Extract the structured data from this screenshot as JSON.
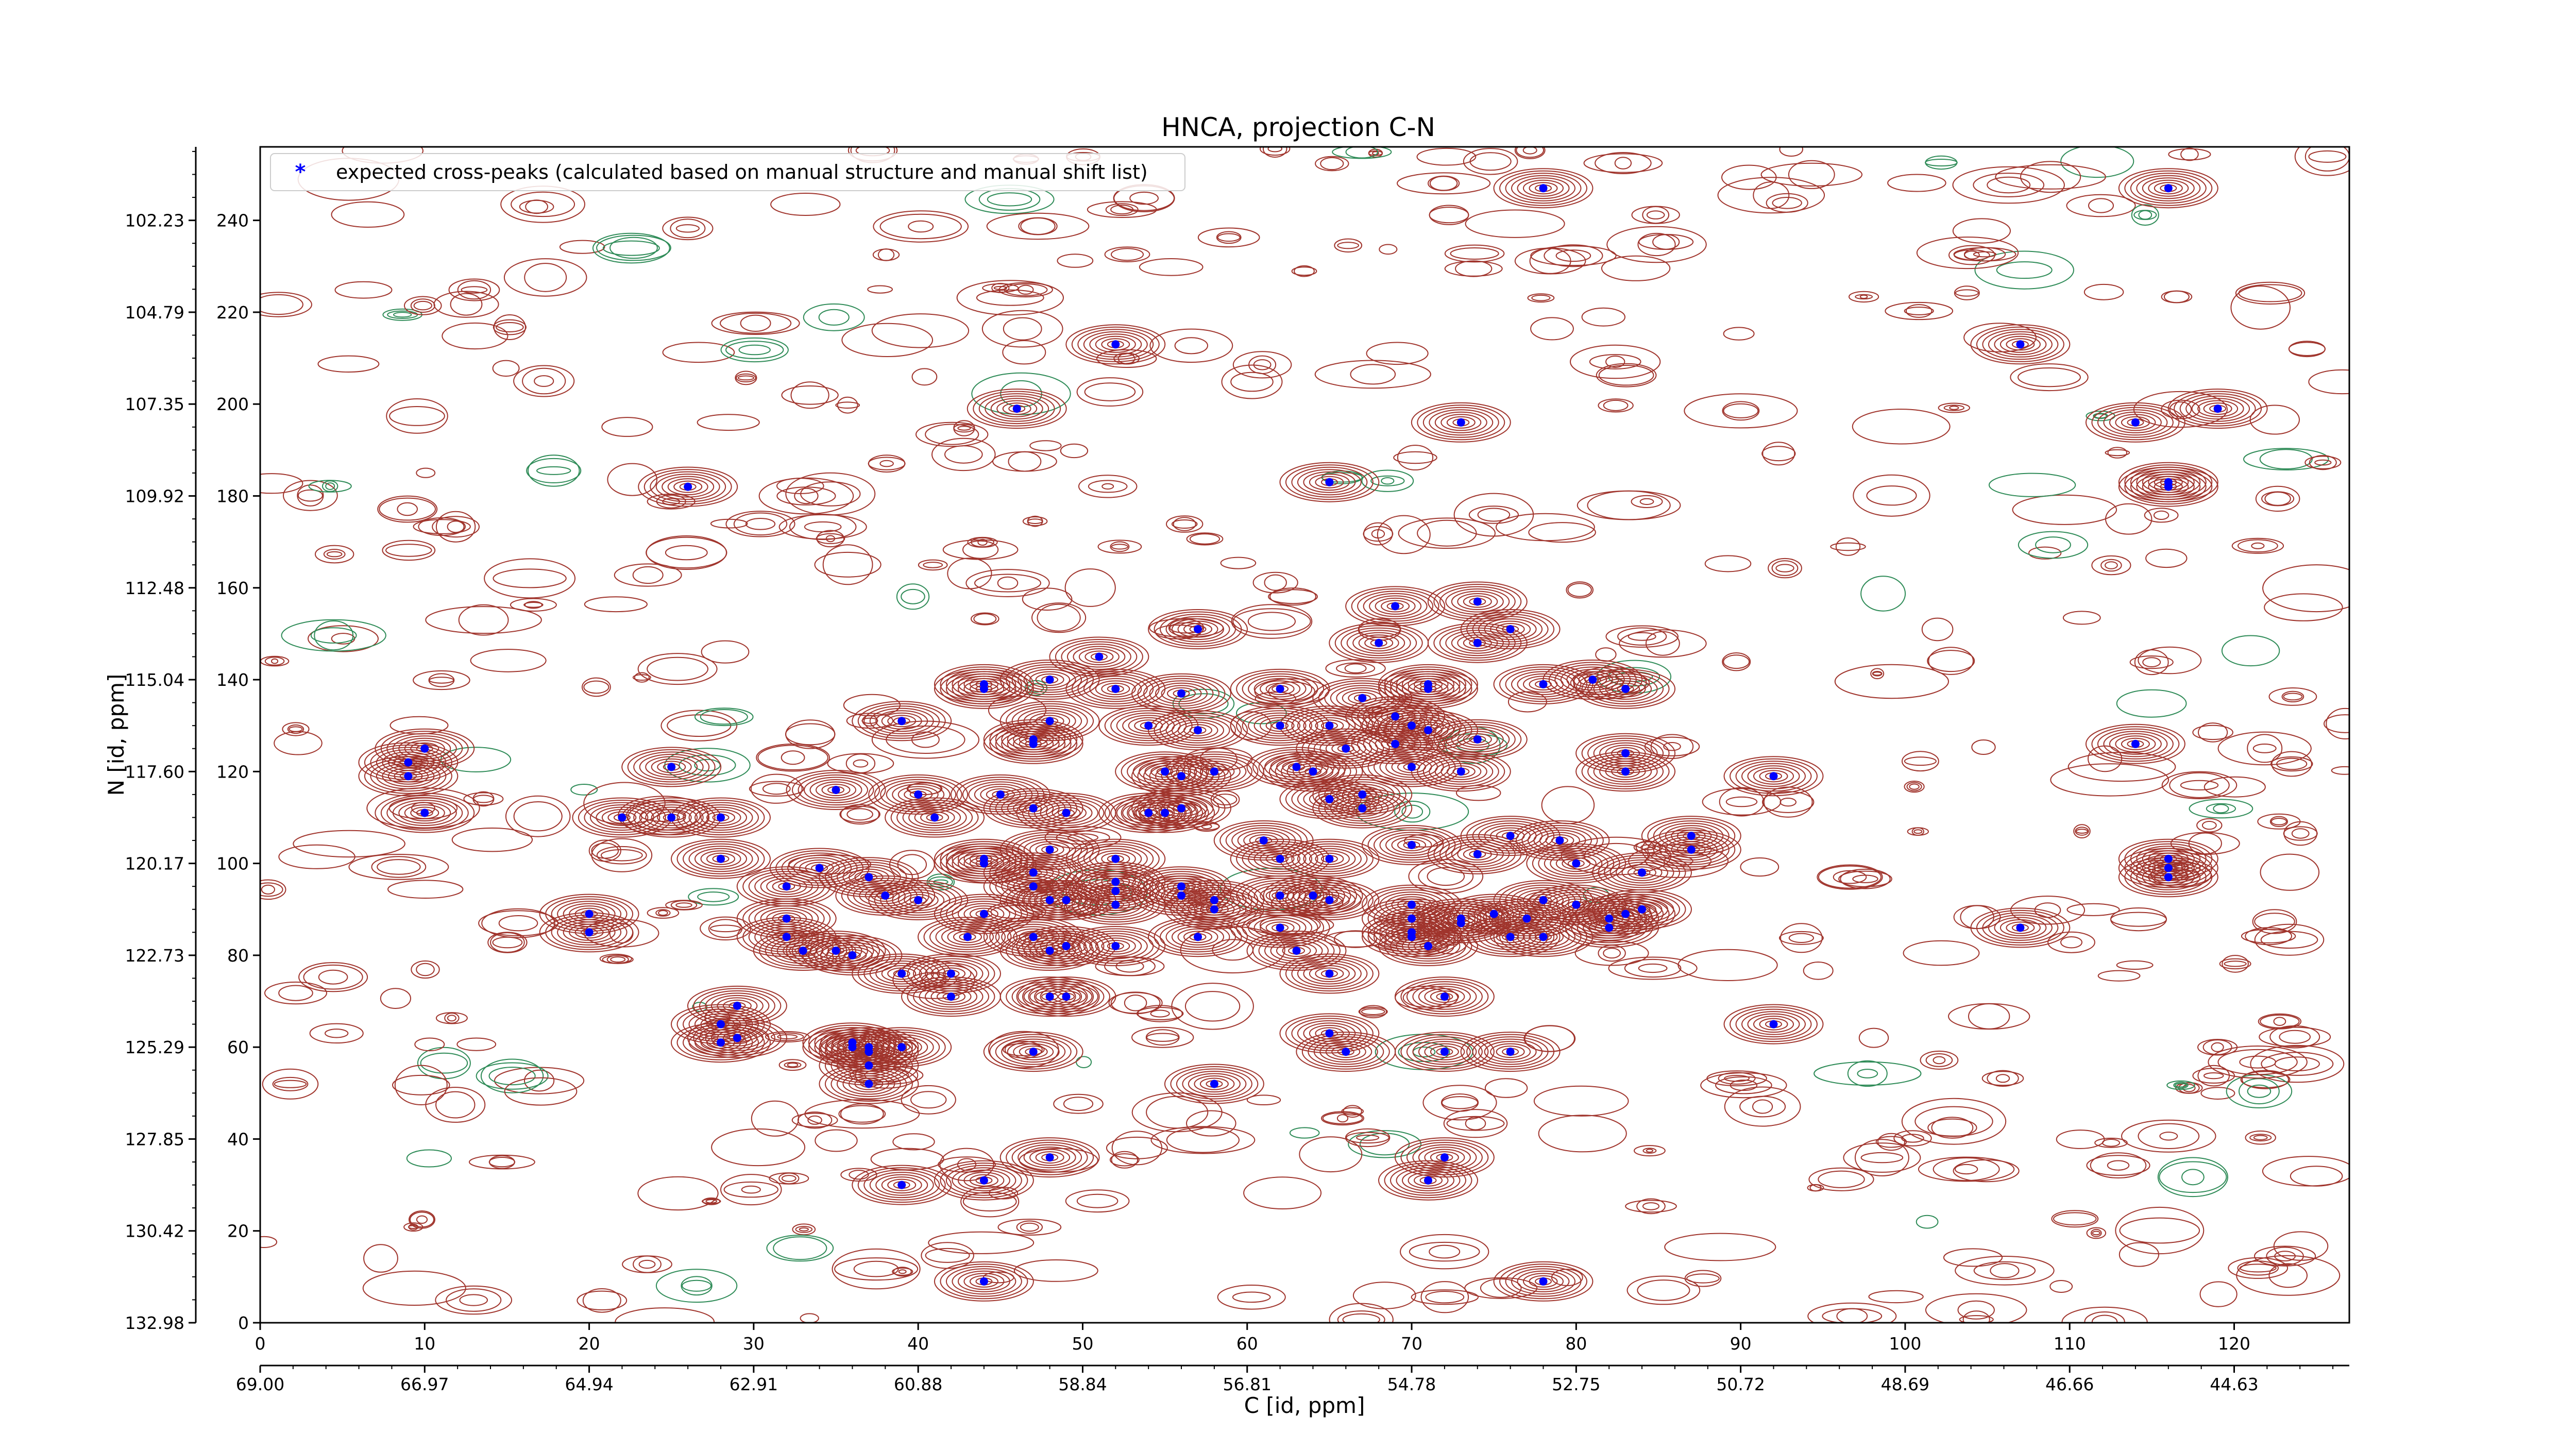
{
  "chart_data": {
    "type": "contour",
    "title": "HNCA, projection C-N",
    "xlabel": "C [id, ppm]",
    "ylabel": "N [id, ppm]",
    "x_index_range": [
      0,
      127
    ],
    "y_index_range": [
      0,
      256
    ],
    "x_index_ticks": [
      0,
      10,
      20,
      30,
      40,
      50,
      60,
      70,
      80,
      90,
      100,
      110,
      120
    ],
    "y_index_ticks": [
      0,
      20,
      40,
      60,
      80,
      100,
      120,
      140,
      160,
      180,
      200,
      220,
      240
    ],
    "x_ppm_ticks": [
      "69.00",
      "66.97",
      "64.94",
      "62.91",
      "60.88",
      "58.84",
      "56.81",
      "54.78",
      "52.75",
      "50.72",
      "48.69",
      "46.66",
      "44.63"
    ],
    "y_ppm_ticks": [
      "132.98",
      "130.42",
      "127.85",
      "125.29",
      "122.73",
      "120.17",
      "117.60",
      "115.04",
      "112.48",
      "109.92",
      "107.35",
      "104.79",
      "102.23"
    ],
    "contour_colors": {
      "positive": "#a0342c",
      "negative": "#2e8b57"
    },
    "marker_color": "#0000ff",
    "legend": {
      "placement": "top-left",
      "entries": [
        "expected cross-peaks (calculated based on manual structure and manual shift list)"
      ]
    },
    "peaks": [
      [
        78,
        247
      ],
      [
        116,
        247
      ],
      [
        52,
        213
      ],
      [
        107,
        213
      ],
      [
        46,
        199
      ],
      [
        73,
        196
      ],
      [
        119,
        199
      ],
      [
        114,
        196
      ],
      [
        26,
        182
      ],
      [
        65,
        183
      ],
      [
        116,
        183
      ],
      [
        116,
        182
      ],
      [
        69,
        156
      ],
      [
        74,
        157
      ],
      [
        57,
        151
      ],
      [
        76,
        151
      ],
      [
        68,
        148
      ],
      [
        74,
        148
      ],
      [
        51,
        145
      ],
      [
        44,
        138
      ],
      [
        44,
        139
      ],
      [
        48,
        140
      ],
      [
        52,
        138
      ],
      [
        56,
        137
      ],
      [
        62,
        138
      ],
      [
        67,
        136
      ],
      [
        71,
        138
      ],
      [
        71,
        139
      ],
      [
        78,
        139
      ],
      [
        81,
        140
      ],
      [
        83,
        138
      ],
      [
        39,
        131
      ],
      [
        48,
        131
      ],
      [
        47,
        127
      ],
      [
        47,
        126
      ],
      [
        54,
        130
      ],
      [
        57,
        129
      ],
      [
        62,
        130
      ],
      [
        65,
        130
      ],
      [
        69,
        132
      ],
      [
        70,
        130
      ],
      [
        71,
        129
      ],
      [
        69,
        126
      ],
      [
        74,
        127
      ],
      [
        10,
        125
      ],
      [
        9,
        122
      ],
      [
        9,
        119
      ],
      [
        25,
        121
      ],
      [
        66,
        125
      ],
      [
        70,
        121
      ],
      [
        64,
        120
      ],
      [
        55,
        120
      ],
      [
        56,
        119
      ],
      [
        58,
        120
      ],
      [
        63,
        121
      ],
      [
        73,
        120
      ],
      [
        83,
        124
      ],
      [
        83,
        120
      ],
      [
        92,
        119
      ],
      [
        114,
        126
      ],
      [
        10,
        111
      ],
      [
        22,
        110
      ],
      [
        25,
        110
      ],
      [
        28,
        110
      ],
      [
        35,
        116
      ],
      [
        40,
        115
      ],
      [
        41,
        110
      ],
      [
        45,
        115
      ],
      [
        47,
        112
      ],
      [
        49,
        111
      ],
      [
        54,
        111
      ],
      [
        55,
        111
      ],
      [
        56,
        112
      ],
      [
        65,
        114
      ],
      [
        67,
        112
      ],
      [
        67,
        115
      ],
      [
        28,
        101
      ],
      [
        34,
        99
      ],
      [
        37,
        97
      ],
      [
        44,
        101
      ],
      [
        44,
        100
      ],
      [
        47,
        98
      ],
      [
        48,
        103
      ],
      [
        52,
        101
      ],
      [
        52,
        96
      ],
      [
        61,
        105
      ],
      [
        62,
        101
      ],
      [
        65,
        101
      ],
      [
        70,
        104
      ],
      [
        74,
        102
      ],
      [
        76,
        106
      ],
      [
        79,
        105
      ],
      [
        80,
        100
      ],
      [
        84,
        98
      ],
      [
        87,
        106
      ],
      [
        87,
        103
      ],
      [
        116,
        101
      ],
      [
        116,
        99
      ],
      [
        116,
        97
      ],
      [
        32,
        95
      ],
      [
        38,
        93
      ],
      [
        40,
        92
      ],
      [
        44,
        89
      ],
      [
        47,
        95
      ],
      [
        48,
        92
      ],
      [
        49,
        92
      ],
      [
        52,
        94
      ],
      [
        52,
        91
      ],
      [
        56,
        95
      ],
      [
        56,
        93
      ],
      [
        58,
        92
      ],
      [
        58,
        90
      ],
      [
        62,
        93
      ],
      [
        64,
        93
      ],
      [
        65,
        92
      ],
      [
        70,
        91
      ],
      [
        70,
        88
      ],
      [
        73,
        88
      ],
      [
        73,
        87
      ],
      [
        75,
        89
      ],
      [
        77,
        88
      ],
      [
        78,
        92
      ],
      [
        80,
        91
      ],
      [
        82,
        88
      ],
      [
        83,
        89
      ],
      [
        84,
        90
      ],
      [
        20,
        89
      ],
      [
        20,
        85
      ],
      [
        32,
        88
      ],
      [
        32,
        84
      ],
      [
        33,
        81
      ],
      [
        35,
        81
      ],
      [
        36,
        80
      ],
      [
        43,
        84
      ],
      [
        47,
        84
      ],
      [
        48,
        81
      ],
      [
        49,
        82
      ],
      [
        52,
        82
      ],
      [
        57,
        84
      ],
      [
        62,
        86
      ],
      [
        63,
        81
      ],
      [
        70,
        85
      ],
      [
        70,
        84
      ],
      [
        71,
        82
      ],
      [
        76,
        84
      ],
      [
        78,
        84
      ],
      [
        82,
        86
      ],
      [
        107,
        86
      ],
      [
        39,
        76
      ],
      [
        42,
        76
      ],
      [
        42,
        71
      ],
      [
        48,
        71
      ],
      [
        49,
        71
      ],
      [
        65,
        76
      ],
      [
        72,
        71
      ],
      [
        65,
        63
      ],
      [
        66,
        59
      ],
      [
        72,
        59
      ],
      [
        76,
        59
      ],
      [
        92,
        65
      ],
      [
        28,
        65
      ],
      [
        28,
        61
      ],
      [
        29,
        62
      ],
      [
        29,
        69
      ],
      [
        36,
        61
      ],
      [
        36,
        60
      ],
      [
        37,
        60
      ],
      [
        37,
        59
      ],
      [
        39,
        60
      ],
      [
        37,
        56
      ],
      [
        37,
        52
      ],
      [
        47,
        59
      ],
      [
        58,
        52
      ],
      [
        39,
        30
      ],
      [
        44,
        31
      ],
      [
        48,
        36
      ],
      [
        72,
        36
      ],
      [
        71,
        31
      ],
      [
        44,
        9
      ],
      [
        78,
        9
      ]
    ]
  },
  "legend_marker": "*"
}
